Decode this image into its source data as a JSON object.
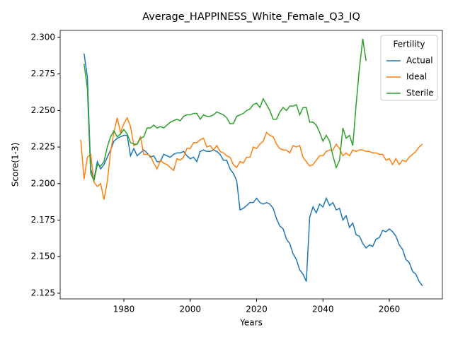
{
  "chart_data": {
    "type": "line",
    "title": "Average_HAPPINESS_White_Female_Q3_IQ",
    "x_label": "Years",
    "y_label": "Score(1-3)",
    "legend_title": "Fertility",
    "legend": "upper right",
    "grid": false,
    "x": [
      1967,
      1968,
      1969,
      1970,
      1971,
      1972,
      1973,
      1974,
      1975,
      1976,
      1977,
      1978,
      1979,
      1980,
      1981,
      1982,
      1983,
      1984,
      1985,
      1986,
      1987,
      1988,
      1989,
      1990,
      1991,
      1992,
      1993,
      1994,
      1995,
      1996,
      1997,
      1998,
      1999,
      2000,
      2001,
      2002,
      2003,
      2004,
      2005,
      2006,
      2007,
      2008,
      2009,
      2010,
      2011,
      2012,
      2013,
      2014,
      2015,
      2016,
      2017,
      2018,
      2019,
      2020,
      2021,
      2022,
      2023,
      2024,
      2025,
      2026,
      2027,
      2028,
      2029,
      2030,
      2031,
      2032,
      2033,
      2034,
      2035,
      2036,
      2037,
      2038,
      2039,
      2040,
      2041,
      2042,
      2043,
      2044,
      2045,
      2046,
      2047,
      2048,
      2049,
      2050,
      2051,
      2052,
      2053,
      2054,
      2055,
      2056,
      2057,
      2058,
      2059,
      2060,
      2061,
      2062,
      2063,
      2064,
      2065,
      2066,
      2067,
      2068,
      2069,
      2070
    ],
    "series": [
      {
        "name": "Actual",
        "color": "#1f77b4",
        "values": [
          null,
          2.289,
          2.273,
          2.21,
          2.203,
          2.215,
          2.21,
          2.213,
          2.218,
          2.223,
          2.229,
          2.231,
          2.232,
          2.233,
          2.233,
          2.219,
          2.224,
          2.219,
          2.221,
          2.223,
          2.221,
          2.218,
          2.219,
          2.215,
          2.215,
          2.22,
          2.219,
          2.218,
          2.22,
          2.221,
          2.221,
          2.222,
          2.219,
          2.217,
          2.218,
          2.215,
          2.222,
          2.223,
          2.222,
          2.222,
          2.223,
          2.222,
          2.22,
          2.216,
          2.216,
          2.21,
          2.207,
          2.202,
          2.182,
          2.183,
          2.185,
          2.187,
          2.187,
          2.19,
          2.187,
          2.186,
          2.187,
          2.186,
          2.183,
          2.176,
          2.171,
          2.169,
          2.162,
          2.159,
          2.152,
          2.148,
          2.141,
          2.138,
          2.133,
          2.177,
          2.184,
          2.18,
          2.186,
          2.184,
          2.19,
          2.185,
          2.187,
          2.182,
          2.183,
          2.175,
          2.178,
          2.17,
          2.173,
          2.165,
          2.164,
          2.159,
          2.156,
          2.158,
          2.157,
          2.162,
          2.163,
          2.168,
          2.167,
          2.169,
          2.167,
          2.164,
          2.158,
          2.155,
          2.148,
          2.146,
          2.14,
          2.138,
          2.133,
          2.13
        ]
      },
      {
        "name": "Ideal",
        "color": "#ff7f0e",
        "values": [
          2.23,
          2.203,
          2.218,
          2.22,
          2.201,
          2.198,
          2.2,
          2.189,
          2.201,
          2.222,
          2.235,
          2.245,
          2.235,
          2.241,
          2.245,
          2.239,
          2.226,
          2.227,
          2.232,
          2.22,
          2.22,
          2.219,
          2.214,
          2.21,
          2.216,
          2.214,
          2.213,
          2.211,
          2.209,
          2.217,
          2.216,
          2.218,
          2.224,
          2.224,
          2.228,
          2.228,
          2.23,
          2.231,
          2.225,
          2.226,
          2.223,
          2.226,
          2.222,
          2.221,
          2.219,
          2.218,
          2.213,
          2.211,
          2.215,
          2.214,
          2.218,
          2.218,
          2.225,
          2.224,
          2.227,
          2.229,
          2.235,
          2.233,
          2.232,
          2.227,
          2.224,
          2.223,
          2.223,
          2.221,
          2.226,
          2.225,
          2.226,
          2.218,
          2.215,
          2.212,
          2.213,
          2.216,
          2.219,
          2.219,
          2.222,
          2.223,
          2.223,
          2.227,
          2.224,
          2.219,
          2.221,
          2.219,
          2.223,
          2.222,
          2.223,
          2.223,
          2.222,
          2.222,
          2.221,
          2.221,
          2.22,
          2.22,
          2.216,
          2.217,
          2.213,
          2.217,
          2.213,
          2.216,
          2.215,
          2.218,
          2.22,
          2.222,
          2.225,
          2.227
        ]
      },
      {
        "name": "Sterile",
        "color": "#2ca02c",
        "values": [
          null,
          2.282,
          2.265,
          2.207,
          2.202,
          2.213,
          2.212,
          2.215,
          2.225,
          2.232,
          2.236,
          2.232,
          2.234,
          2.237,
          2.234,
          2.228,
          2.227,
          2.227,
          2.231,
          2.232,
          2.238,
          2.238,
          2.24,
          2.238,
          2.239,
          2.238,
          2.24,
          2.242,
          2.243,
          2.244,
          2.243,
          2.246,
          2.247,
          2.247,
          2.248,
          2.248,
          2.244,
          2.247,
          2.246,
          2.246,
          2.247,
          2.249,
          2.248,
          2.247,
          2.245,
          2.241,
          2.241,
          2.246,
          2.247,
          2.248,
          2.25,
          2.251,
          2.254,
          2.255,
          2.252,
          2.258,
          2.254,
          2.25,
          2.244,
          2.244,
          2.249,
          2.252,
          2.25,
          2.253,
          2.253,
          2.254,
          2.247,
          2.252,
          2.252,
          2.242,
          2.242,
          2.24,
          2.235,
          2.229,
          2.233,
          2.229,
          2.219,
          2.211,
          2.216,
          2.238,
          2.231,
          2.233,
          2.226,
          2.254,
          2.279,
          2.299,
          2.284,
          null,
          null,
          null,
          null,
          null,
          null,
          null,
          null,
          null,
          null,
          null,
          null,
          null,
          null,
          null,
          null,
          null
        ]
      }
    ],
    "xlim": [
      1960.8,
      2076
    ],
    "xticks": [
      1980,
      2000,
      2020,
      2040,
      2060
    ],
    "ylim": [
      2.1211,
      2.3048
    ],
    "yticks": [
      2.125,
      {
        "value": 2.15,
        "label": "2.150"
      },
      2.175,
      {
        "value": 2.2,
        "label": "2.200"
      },
      2.225,
      {
        "value": 2.25,
        "label": "2.250"
      },
      2.275,
      {
        "value": 2.3,
        "label": "2.300"
      }
    ]
  }
}
